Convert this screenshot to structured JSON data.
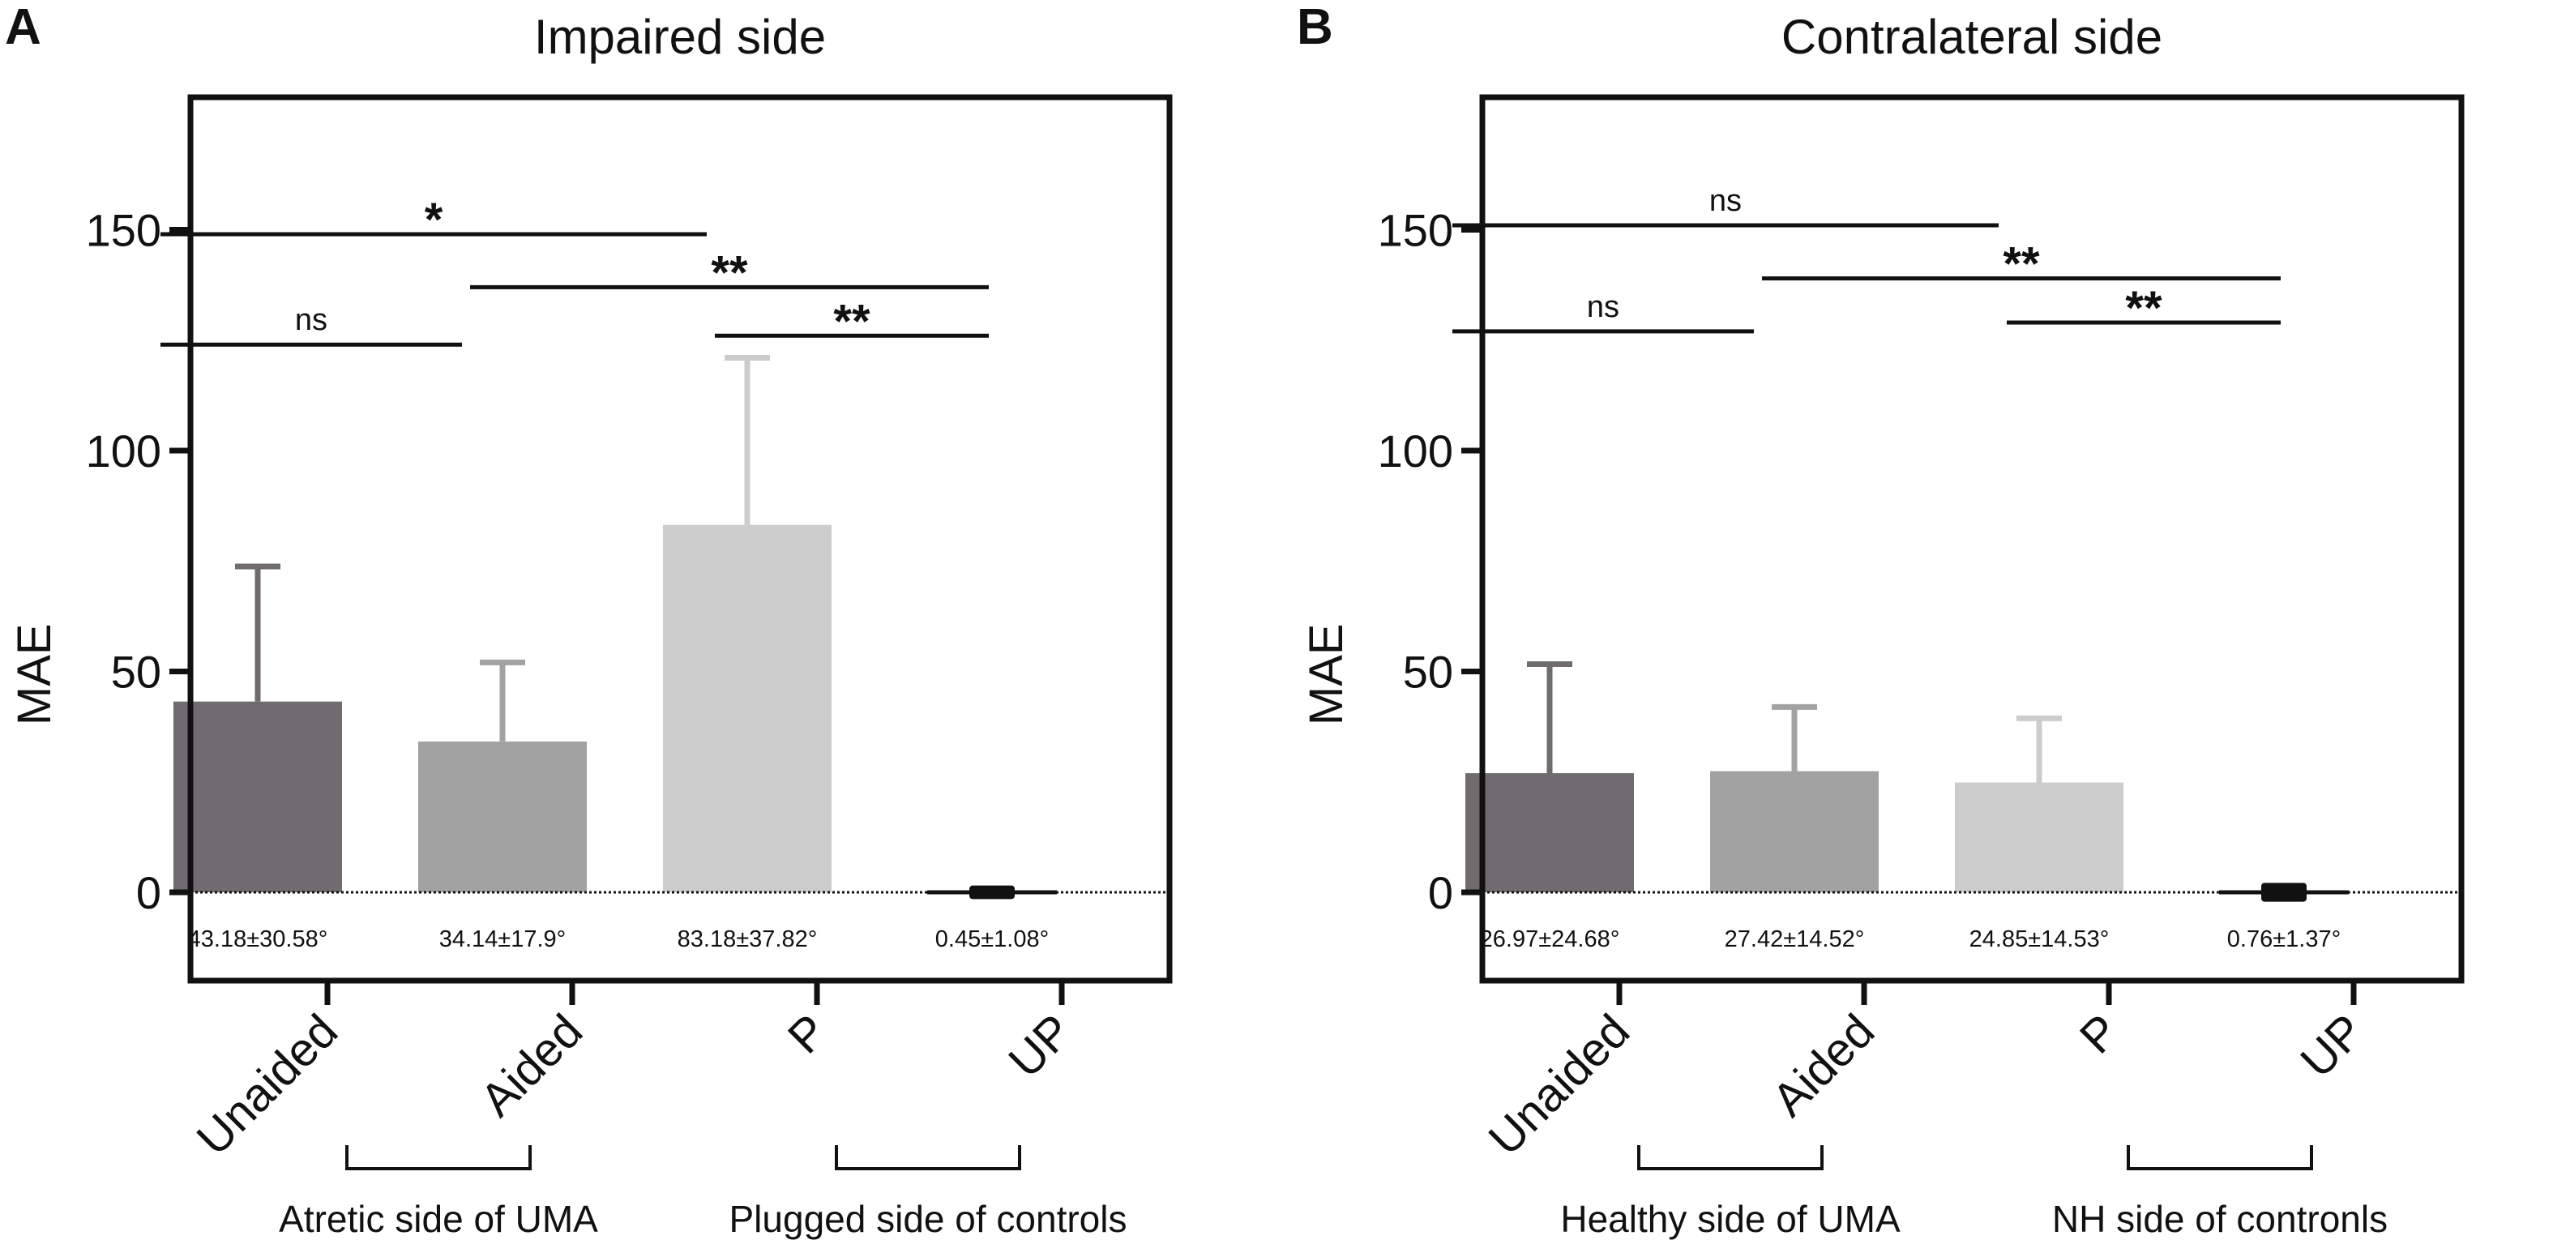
{
  "panel_labels": [
    "A",
    "B"
  ],
  "colors": {
    "unaided": "#6f6b6f",
    "aided": "#a3a2a3",
    "plugged": "#cccccc",
    "unplugged": "#111111",
    "axis": "#111111"
  },
  "chart_data": [
    {
      "type": "bar",
      "panel": "A",
      "title": "Impaired side",
      "ylabel": "MAE",
      "ylim": [
        -20,
        180
      ],
      "yticks": [
        0,
        50,
        100,
        150
      ],
      "categories": [
        "Unaided",
        "Aided",
        "P",
        "UP"
      ],
      "values": [
        43.18,
        34.14,
        83.18,
        0.45
      ],
      "errors": [
        30.58,
        17.9,
        37.82,
        1.08
      ],
      "data_labels": [
        "43.18±30.58°",
        "34.14±17.9°",
        "83.18±37.82°",
        "0.45±1.08°"
      ],
      "groups": [
        "Atretic side of UMA",
        "Plugged side of controls"
      ],
      "significance": [
        {
          "from": 0,
          "to": 2,
          "y": 149,
          "label": "*"
        },
        {
          "from": 1,
          "to": 3,
          "y": 137,
          "label": "**"
        },
        {
          "from": 0,
          "to": 1,
          "y": 124,
          "label": "ns"
        },
        {
          "from": 2,
          "to": 3,
          "y": 126,
          "label": "**"
        }
      ]
    },
    {
      "type": "bar",
      "panel": "B",
      "title": "Contralateral side",
      "ylabel": "MAE",
      "ylim": [
        -20,
        180
      ],
      "yticks": [
        0,
        50,
        100,
        150
      ],
      "categories": [
        "Unaided",
        "Aided",
        "P",
        "UP"
      ],
      "values": [
        26.97,
        27.42,
        24.85,
        0.76
      ],
      "errors": [
        24.68,
        14.52,
        14.53,
        1.37
      ],
      "data_labels": [
        "26.97±24.68°",
        "27.42±14.52°",
        "24.85±14.53°",
        "0.76±1.37°"
      ],
      "groups": [
        "Healthy side of UMA",
        "NH side of contronls"
      ],
      "significance": [
        {
          "from": 0,
          "to": 2,
          "y": 151,
          "label": "ns"
        },
        {
          "from": 1,
          "to": 3,
          "y": 139,
          "label": "**"
        },
        {
          "from": 0,
          "to": 1,
          "y": 127,
          "label": "ns"
        },
        {
          "from": 2,
          "to": 3,
          "y": 129,
          "label": "**"
        }
      ]
    }
  ]
}
